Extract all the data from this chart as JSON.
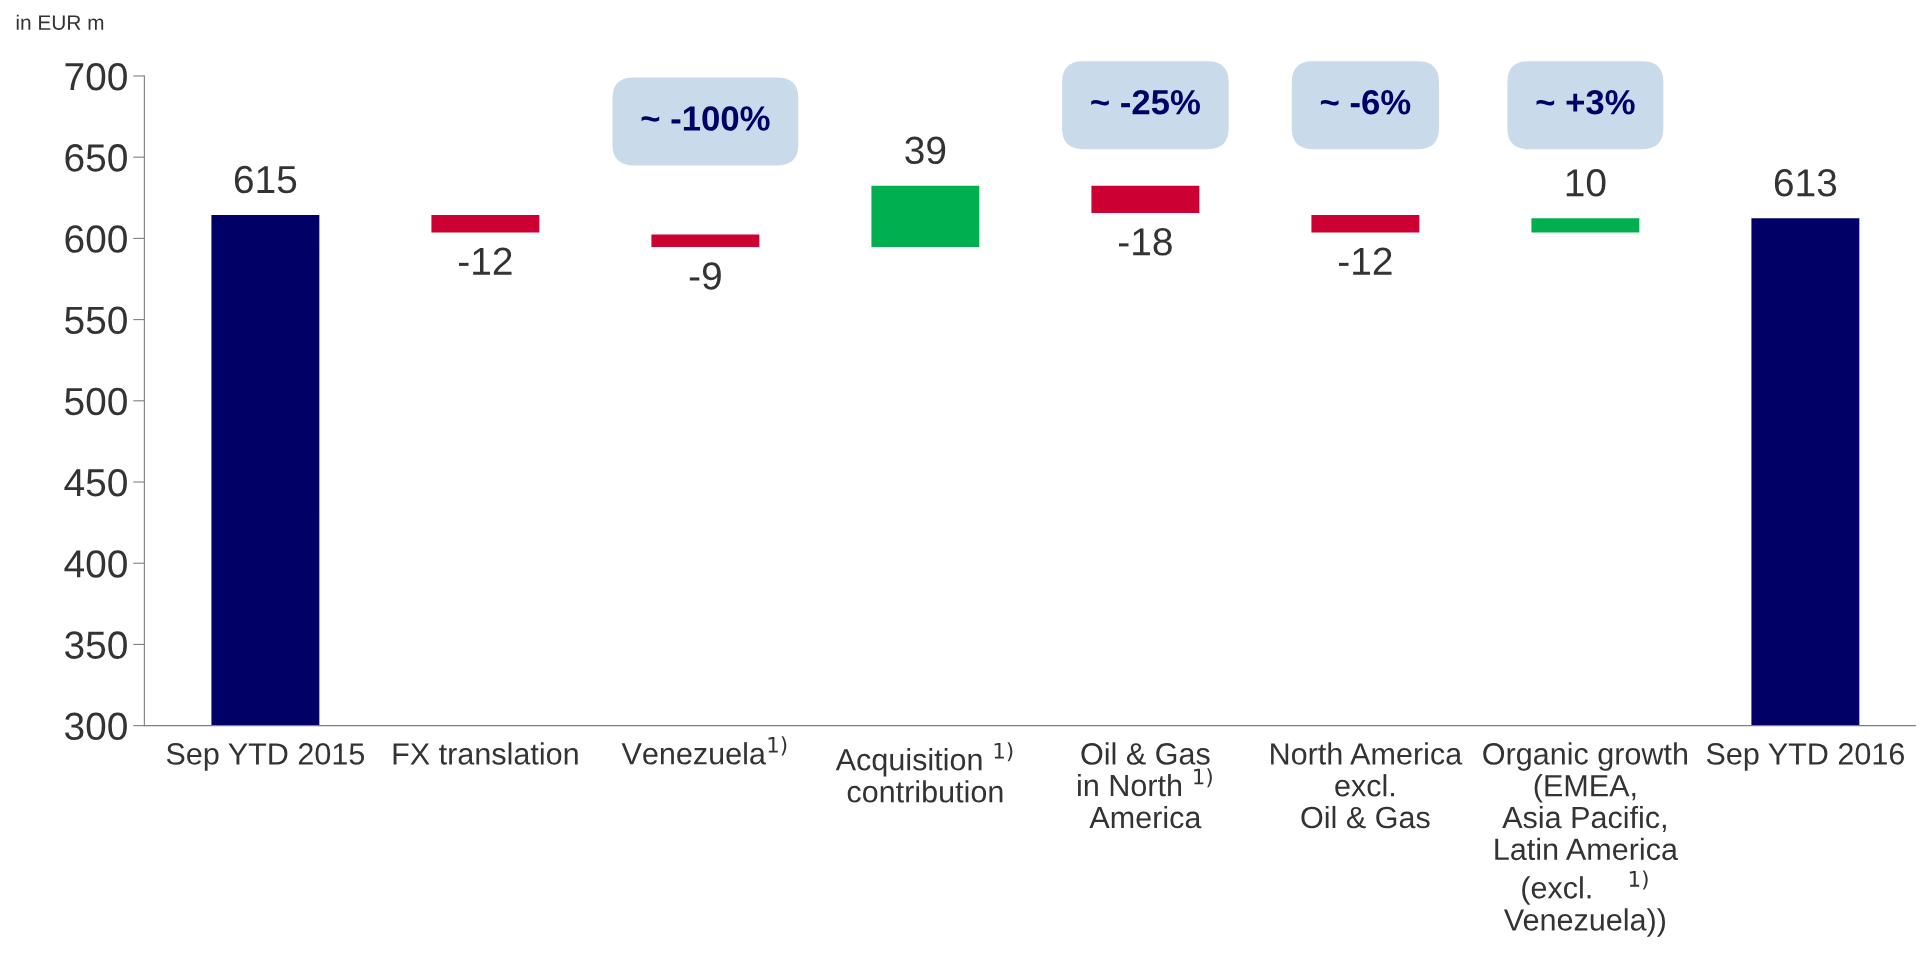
{
  "chart_data": {
    "type": "bar",
    "ylabel": "in EUR m",
    "categories": [
      "Sep YTD 2015",
      "FX translation",
      "Venezuela$^{1)}$",
      "Acquisition $^{1)}$\ncontribution",
      "Oil & Gas\nin North $^{1)}$\nAmerica",
      "North America\nexcl.\nOil & Gas",
      "Organic growth\n(EMEA,\nAsia Pacific,\nLatin America\n(excl.    $^{1)}$\nVenezuela))",
      "Sep YTD 2016"
    ],
    "values": [
      615,
      -12,
      -9,
      39,
      -18,
      -12,
      10,
      613
    ],
    "base": [
      null,
      615,
      603,
      594,
      633,
      615,
      603,
      null
    ],
    "colors": [
      "#000066",
      "#cc0033",
      "#cc0033",
      "#00b050",
      "#cc0033",
      "#cc0033",
      "#00b050",
      "#000066"
    ],
    "data_labels": true,
    "ylim": [
      300,
      700
    ],
    "yticks": [
      300,
      350,
      400,
      450,
      500,
      550,
      600,
      650,
      700
    ],
    "grid": false,
    "annotations": [
      "~ -100%",
      "~ -25%",
      "~ -6%",
      "~ +3%"
    ]
  }
}
